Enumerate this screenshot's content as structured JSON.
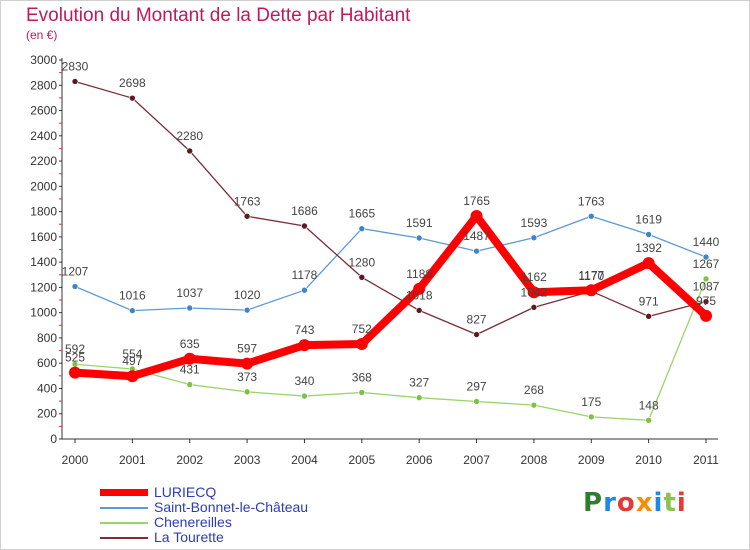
{
  "title": "Evolution du Montant de la Dette par Habitant",
  "subtitle": "(en €)",
  "logo": {
    "text": "Proxiti",
    "colors": [
      "#2e7d32",
      "#1e88e5",
      "#e53935",
      "#fb8c00",
      "#1e88e5",
      "#8bc34a",
      "#e53935"
    ]
  },
  "chart_data": {
    "type": "line",
    "x": [
      "2000",
      "2001",
      "2002",
      "2003",
      "2004",
      "2005",
      "2006",
      "2007",
      "2008",
      "2009",
      "2010",
      "2011"
    ],
    "ylim": [
      0,
      3000
    ],
    "yticks": [
      "0",
      "200",
      "400",
      "600",
      "800",
      "1000",
      "1200",
      "1400",
      "1600",
      "1800",
      "2000",
      "2200",
      "2400",
      "2600",
      "2800",
      "3000"
    ],
    "grid": false,
    "legend_position": "bottom-left",
    "series": [
      {
        "name": "Chenereilles",
        "color": "#9ad36a",
        "marker": "#7dc242",
        "values": [
          592,
          554,
          431,
          373,
          340,
          368,
          327,
          297,
          268,
          175,
          148,
          1267
        ],
        "labels": [
          "592",
          "554",
          "431",
          "373",
          "340",
          "368",
          "327",
          "297",
          "268",
          "175",
          "148",
          "1267"
        ]
      },
      {
        "name": "Saint-Bonnet-le-Château",
        "color": "#5b9bd5",
        "marker": "#3f83c8",
        "values": [
          1207,
          1016,
          1037,
          1020,
          1178,
          1665,
          1591,
          1487,
          1593,
          1763,
          1619,
          1440
        ],
        "labels": [
          "1207",
          "1016",
          "1037",
          "1020",
          "1178",
          "1665",
          "1591",
          "1487",
          "1593",
          "1763",
          "1619",
          "1440"
        ]
      },
      {
        "name": "La Tourette",
        "color": "#7b2e35",
        "marker": "#5c1a20",
        "values": [
          2830,
          2698,
          2280,
          1763,
          1686,
          1280,
          1018,
          827,
          1042,
          1170,
          971,
          1087
        ],
        "labels": [
          "2830",
          "2698",
          "2280",
          "1763",
          "1686",
          "1280",
          "1018",
          "827",
          "1042",
          "1170",
          "971",
          "1087"
        ]
      },
      {
        "name": "LURIECQ",
        "color": "#ff0000",
        "marker": "#ff0000",
        "values": [
          525,
          497,
          635,
          597,
          743,
          752,
          1188,
          1765,
          1162,
          1177,
          1392,
          975
        ],
        "labels": [
          "525",
          "497",
          "635",
          "597",
          "743",
          "752",
          "1188",
          "1765",
          "1162",
          "1177",
          "1392",
          "975"
        ]
      }
    ],
    "legend_order": [
      "LURIECQ",
      "Saint-Bonnet-le-Château",
      "Chenereilles",
      "La Tourette"
    ]
  }
}
